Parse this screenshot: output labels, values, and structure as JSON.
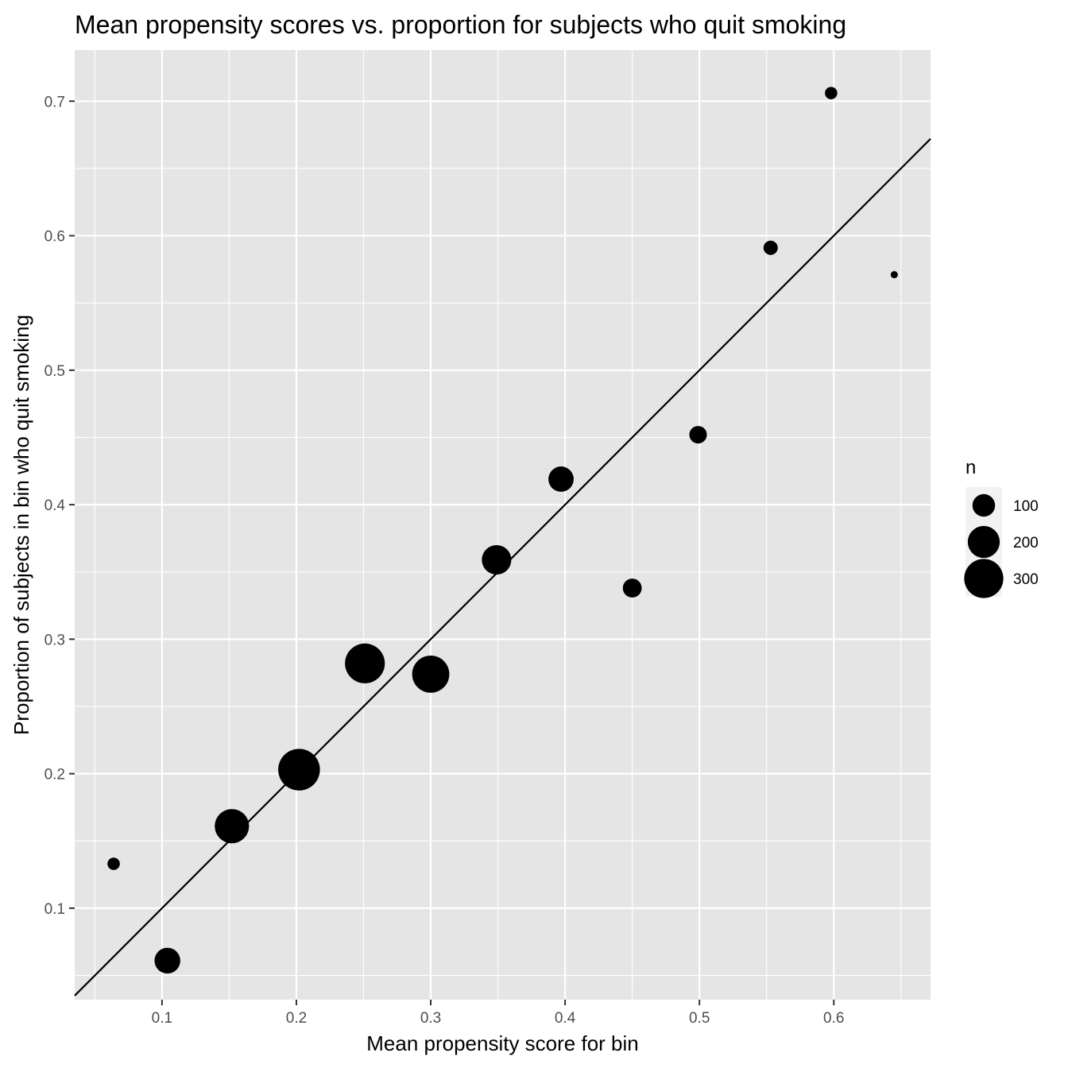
{
  "chart_data": {
    "type": "scatter",
    "title": "Mean propensity scores vs. proportion for subjects who quit smoking",
    "xlabel": "Mean propensity score for bin",
    "ylabel": "Proportion of subjects in bin who quit smoking",
    "xlim": [
      0.035,
      0.672
    ],
    "ylim": [
      0.032,
      0.738
    ],
    "x_ticks": [
      0.1,
      0.2,
      0.3,
      0.4,
      0.5,
      0.6
    ],
    "y_ticks": [
      0.1,
      0.2,
      0.3,
      0.4,
      0.5,
      0.6,
      0.7
    ],
    "x_tick_labels": [
      "0.1",
      "0.2",
      "0.3",
      "0.4",
      "0.5",
      "0.6"
    ],
    "y_tick_labels": [
      "0.1",
      "0.2",
      "0.3",
      "0.4",
      "0.5",
      "0.6",
      "0.7"
    ],
    "grid": true,
    "reference_line": {
      "slope": 1,
      "intercept": 0
    },
    "points": [
      {
        "x": 0.064,
        "y": 0.133,
        "n": 30
      },
      {
        "x": 0.104,
        "y": 0.061,
        "n": 130
      },
      {
        "x": 0.152,
        "y": 0.161,
        "n": 230
      },
      {
        "x": 0.202,
        "y": 0.203,
        "n": 340
      },
      {
        "x": 0.251,
        "y": 0.282,
        "n": 310
      },
      {
        "x": 0.3,
        "y": 0.274,
        "n": 270
      },
      {
        "x": 0.349,
        "y": 0.359,
        "n": 170
      },
      {
        "x": 0.397,
        "y": 0.419,
        "n": 125
      },
      {
        "x": 0.45,
        "y": 0.338,
        "n": 70
      },
      {
        "x": 0.499,
        "y": 0.452,
        "n": 60
      },
      {
        "x": 0.553,
        "y": 0.591,
        "n": 40
      },
      {
        "x": 0.598,
        "y": 0.706,
        "n": 30
      },
      {
        "x": 0.645,
        "y": 0.571,
        "n": 10
      }
    ],
    "legend": {
      "title": "n",
      "placement": "right",
      "entries": [
        {
          "label": "100",
          "n": 100
        },
        {
          "label": "200",
          "n": 200
        },
        {
          "label": "300",
          "n": 300
        }
      ]
    },
    "colors": {
      "panel_background": "#e5e5e5",
      "grid_line": "#ffffff",
      "point": "#000000",
      "reference_line": "#000000",
      "legend_key_background": "#f2f2f2"
    }
  }
}
